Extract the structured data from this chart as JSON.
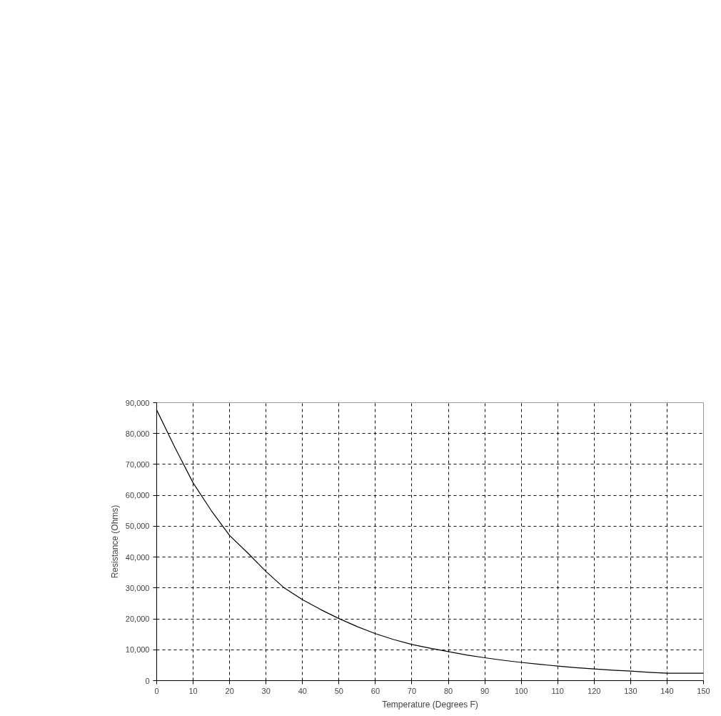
{
  "chart_data": {
    "type": "line",
    "xlabel": "Temperature (Degrees F)",
    "ylabel": "Resistance (Ohms)",
    "x": [
      0,
      5,
      10,
      15,
      20,
      25,
      30,
      35,
      40,
      45,
      50,
      55,
      60,
      65,
      70,
      75,
      80,
      85,
      90,
      95,
      100,
      105,
      110,
      115,
      120,
      125,
      130,
      135,
      140,
      145,
      150
    ],
    "series": [
      {
        "color": "#000000",
        "values": [
          87600,
          75500,
          64000,
          55000,
          47000,
          41300,
          35300,
          30000,
          26200,
          23000,
          20100,
          17500,
          15200,
          13300,
          11700,
          10500,
          9400,
          8300,
          7400,
          6600,
          5900,
          5300,
          4700,
          4200,
          3800,
          3400,
          3100,
          2700,
          2400,
          2400,
          2400
        ]
      }
    ],
    "xlim": [
      0,
      150
    ],
    "ylim": [
      0,
      90000
    ],
    "xticks": [
      0,
      10,
      20,
      30,
      40,
      50,
      60,
      70,
      80,
      90,
      100,
      110,
      120,
      130,
      140,
      150
    ],
    "yticks": [
      0,
      {
        "value": 10000,
        "label": "10,000"
      },
      {
        "value": 20000,
        "label": "20,000"
      },
      {
        "value": 30000,
        "label": "30,000"
      },
      {
        "value": 40000,
        "label": "40,000"
      },
      {
        "value": 50000,
        "label": "50,000"
      },
      {
        "value": 60000,
        "label": "60,000"
      },
      {
        "value": 70000,
        "label": "70,000"
      },
      {
        "value": 80000,
        "label": "80,000"
      },
      {
        "value": 90000,
        "label": "90,000"
      }
    ],
    "grid": true,
    "marker": "none",
    "line_style": "solid"
  }
}
